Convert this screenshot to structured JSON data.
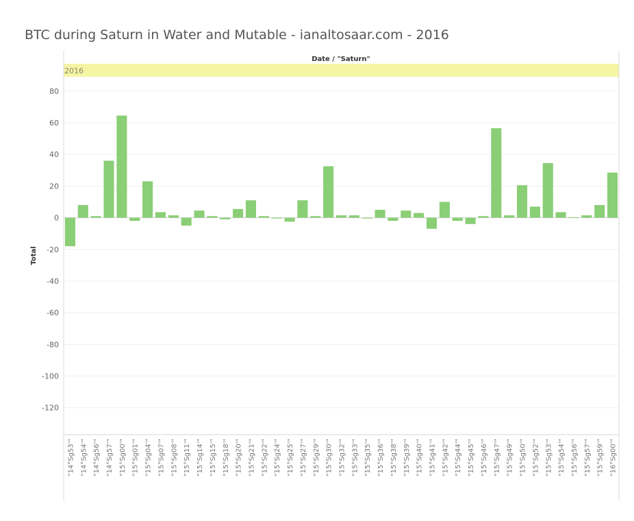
{
  "chart_data": {
    "type": "bar",
    "title": "BTC during Saturn in Water and Mutable - ianaltosaar.com - 2016",
    "column_header": "Date / \"Saturn\"",
    "pane_label": "2016",
    "ylabel": "Total",
    "xlabel": "",
    "ylim": [
      -137,
      89
    ],
    "yticks": [
      80,
      60,
      40,
      20,
      0,
      -20,
      -40,
      -60,
      -80,
      -100,
      -120
    ],
    "grid": true,
    "bar_color": "#8ace76",
    "band_color": "#f5f5a6",
    "categories": [
      "\"14°Sg53'\"",
      "\"14°Sg54'\"",
      "\"14°Sg56'\"",
      "\"14°Sg57'\"",
      "\"15°Sg00'\"",
      "\"15°Sg01'\"",
      "\"15°Sg04'\"",
      "\"15°Sg07'\"",
      "\"15°Sg08'\"",
      "\"15°Sg11'\"",
      "\"15°Sg14'\"",
      "\"15°Sg15'\"",
      "\"15°Sg18'\"",
      "\"15°Sg20'\"",
      "\"15°Sg21'\"",
      "\"15°Sg22'\"",
      "\"15°Sg24'\"",
      "\"15°Sg25'\"",
      "\"15°Sg27'\"",
      "\"15°Sg29'\"",
      "\"15°Sg30'\"",
      "\"15°Sg32'\"",
      "\"15°Sg33'\"",
      "\"15°Sg35'\"",
      "\"15°Sg36'\"",
      "\"15°Sg38'\"",
      "\"15°Sg39'\"",
      "\"15°Sg40'\"",
      "\"15°Sg41'\"",
      "\"15°Sg42'\"",
      "\"15°Sg44'\"",
      "\"15°Sg45'\"",
      "\"15°Sg46'\"",
      "\"15°Sg47'\"",
      "\"15°Sg49'\"",
      "\"15°Sg50'\"",
      "\"15°Sg52'\"",
      "\"15°Sg53'\"",
      "\"15°Sg54'\"",
      "\"15°Sg56'\"",
      "\"15°Sg57'\"",
      "\"15°Sg59'\"",
      "\"16°Sg00'\""
    ],
    "values": [
      -18,
      8,
      1,
      36,
      64.5,
      -2,
      23,
      3.5,
      1.5,
      -5,
      4.5,
      1,
      -1,
      5.5,
      11,
      1,
      -0.5,
      -2.5,
      11,
      1,
      32.5,
      1.5,
      1.5,
      -0.5,
      5,
      -2,
      4.5,
      3,
      -7,
      10,
      -2,
      -4,
      1,
      56.5,
      1.5,
      20.5,
      7,
      34.5,
      3.5,
      0.3,
      1.5,
      8,
      28.5
    ]
  }
}
